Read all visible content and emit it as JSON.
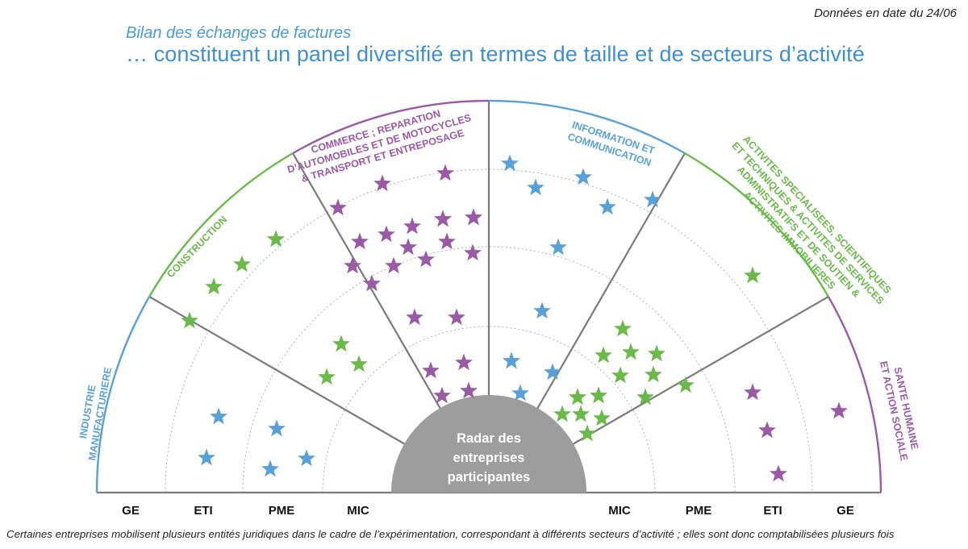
{
  "header": {
    "date_note": "Données en date du 24/06",
    "subtitle": "Bilan des échanges de factures",
    "title": "… constituent un panel diversifié en termes de taille et de secteurs d’activité"
  },
  "center_label": [
    "Radar des",
    "entreprises",
    "participantes"
  ],
  "size_labels": {
    "left": [
      "GE",
      "ETI",
      "PME",
      "MIC"
    ],
    "right": [
      "MIC",
      "PME",
      "ETI",
      "GE"
    ]
  },
  "colors": {
    "blue": "#5aa0d8",
    "green": "#6ab94a",
    "purple": "#9a5aa6",
    "divider": "#7a7a7a",
    "ring": "#b0b0b0",
    "center": "#9d9d9d"
  },
  "sectors": [
    {
      "id": "industrie",
      "lines": [
        "INDUSTRIE",
        "MANUFACTURIERE"
      ],
      "color": "blue"
    },
    {
      "id": "construction",
      "lines": [
        "CONSTRUCTION"
      ],
      "color": "green"
    },
    {
      "id": "commerce",
      "lines": [
        "COMMERCE ; REPARATION",
        "D’AUTOMOBILES ET DE MOTOCYCLES",
        "& TRANSPORT ET ENTREPOSAGE"
      ],
      "color": "purple"
    },
    {
      "id": "information",
      "lines": [
        "INFORMATION ET",
        "COMMUNICATION"
      ],
      "color": "blue"
    },
    {
      "id": "activites",
      "lines": [
        "ACTIVITES SPECIALISEES, SCIENTIFIQUES",
        "ET TECHNIQUES & ACTIVITES DE SERVICES",
        "ADMINISTRATIFS ET DE SOUTIEN &",
        "ACTIVITES IMMOBILIERES"
      ],
      "color": "green"
    },
    {
      "id": "sante",
      "lines": [
        "SANTE HUMAINE",
        "ET ACTION SOCIALE"
      ],
      "color": "purple"
    }
  ],
  "star_counts": [
    {
      "sector": "industrie",
      "size": "ETI",
      "count": 2
    },
    {
      "sector": "industrie",
      "size": "PME",
      "count": 3
    },
    {
      "sector": "construction",
      "size": "GE",
      "count": 5
    },
    {
      "sector": "construction",
      "size": "MIC",
      "count": 3
    },
    {
      "sector": "commerce",
      "size": "GE",
      "count": 2
    },
    {
      "sector": "commerce",
      "size": "ETI",
      "count": 15
    },
    {
      "sector": "commerce",
      "size": "PME",
      "count": 2
    },
    {
      "sector": "commerce",
      "size": "MIC",
      "count": 4
    },
    {
      "sector": "information",
      "size": "GE",
      "count": 5
    },
    {
      "sector": "information",
      "size": "ETI",
      "count": 1
    },
    {
      "sector": "information",
      "size": "PME",
      "count": 1
    },
    {
      "sector": "information",
      "size": "MIC",
      "count": 4
    },
    {
      "sector": "activites",
      "size": "GE",
      "count": 1
    },
    {
      "sector": "activites",
      "size": "PME",
      "count": 8
    },
    {
      "sector": "activites",
      "size": "MIC",
      "count": 8
    },
    {
      "sector": "sante",
      "size": "ETI",
      "count": 3
    },
    {
      "sector": "sante",
      "size": "GE",
      "count": 1
    }
  ],
  "footnote": "Certaines entreprises mobilisent plusieurs entités juridiques dans le cadre de l’expérimentation, correspondant à différents secteurs d’activité ; elles sont donc comptabilisées plusieurs fois"
}
